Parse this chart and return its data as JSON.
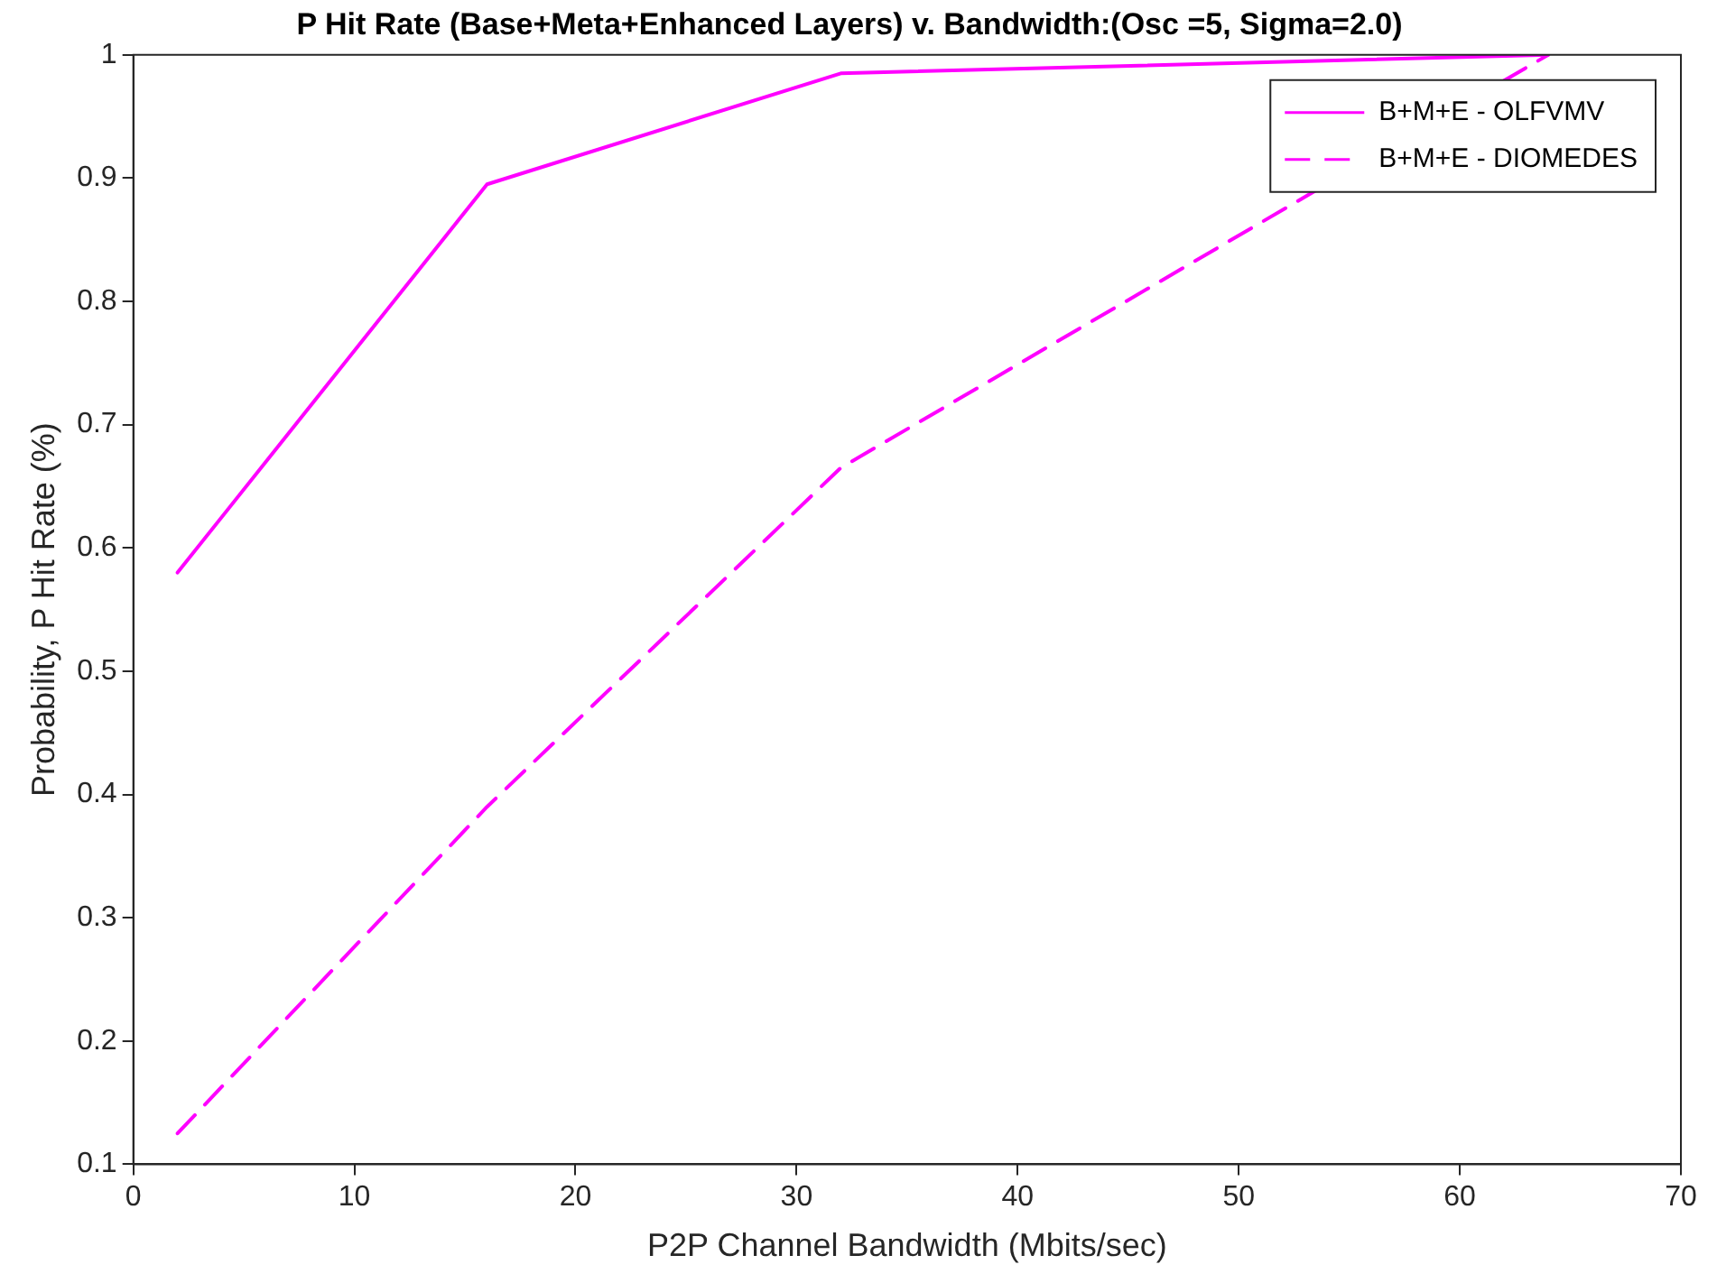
{
  "chart_data": {
    "type": "line",
    "title": "P Hit Rate (Base+Meta+Enhanced Layers) v. Bandwidth:(Osc =5, Sigma=2.0)",
    "xlabel": "P2P Channel Bandwidth (Mbits/sec)",
    "ylabel": "Probability, P Hit Rate (%)",
    "x": [
      2,
      16,
      32,
      64
    ],
    "series": [
      {
        "name": "B+M+E - OLFVMV",
        "color": "#ff00ff",
        "line_style": "solid",
        "values": [
          0.58,
          0.895,
          0.985,
          1.0
        ]
      },
      {
        "name": "B+M+E - DIOMEDES",
        "color": "#ff00ff",
        "line_style": "dashed",
        "values": [
          0.125,
          0.39,
          0.665,
          1.0
        ]
      }
    ],
    "xlim": [
      0,
      70
    ],
    "xticks": [
      0,
      10,
      20,
      30,
      40,
      50,
      60,
      70
    ],
    "ylim": [
      0.1,
      1
    ],
    "yticks": [
      0.1,
      0.2,
      0.3,
      0.4,
      0.5,
      0.6,
      0.7,
      0.8,
      0.9,
      1
    ],
    "grid": false,
    "legend": "top right",
    "marker": "none"
  }
}
